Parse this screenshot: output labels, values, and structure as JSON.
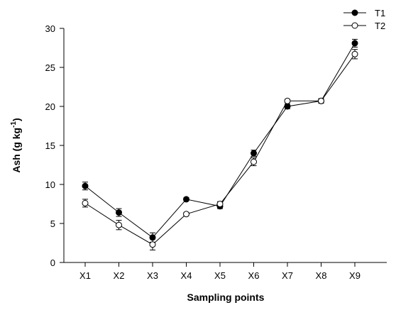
{
  "chart_data": {
    "type": "line",
    "xlabel": "Sampling points",
    "ylabel": "Ash (g kg",
    "ylabel_superscript": "-1",
    "ylabel_suffix": ")",
    "categories": [
      "X1",
      "X2",
      "X3",
      "X4",
      "X5",
      "X6",
      "X7",
      "X8",
      "X9"
    ],
    "ylim": [
      0,
      30
    ],
    "yticks": [
      0,
      5,
      10,
      15,
      20,
      25,
      30
    ],
    "grid": false,
    "legend_position": "top-right",
    "series": [
      {
        "name": "T1",
        "marker": "filled-circle",
        "color": "#000000",
        "values": [
          9.8,
          6.4,
          3.2,
          8.1,
          7.2,
          14.0,
          20.0,
          20.7,
          28.1
        ],
        "errors": [
          0.5,
          0.5,
          0.6,
          0.2,
          0.3,
          0.4,
          0.3,
          0.3,
          0.5
        ]
      },
      {
        "name": "T2",
        "marker": "open-circle",
        "color": "#000000",
        "values": [
          7.6,
          4.8,
          2.3,
          6.2,
          7.5,
          12.9,
          20.7,
          20.7,
          26.7
        ],
        "errors": [
          0.5,
          0.6,
          0.7,
          0.2,
          0.3,
          0.5,
          0.2,
          0.2,
          0.6
        ]
      }
    ]
  }
}
